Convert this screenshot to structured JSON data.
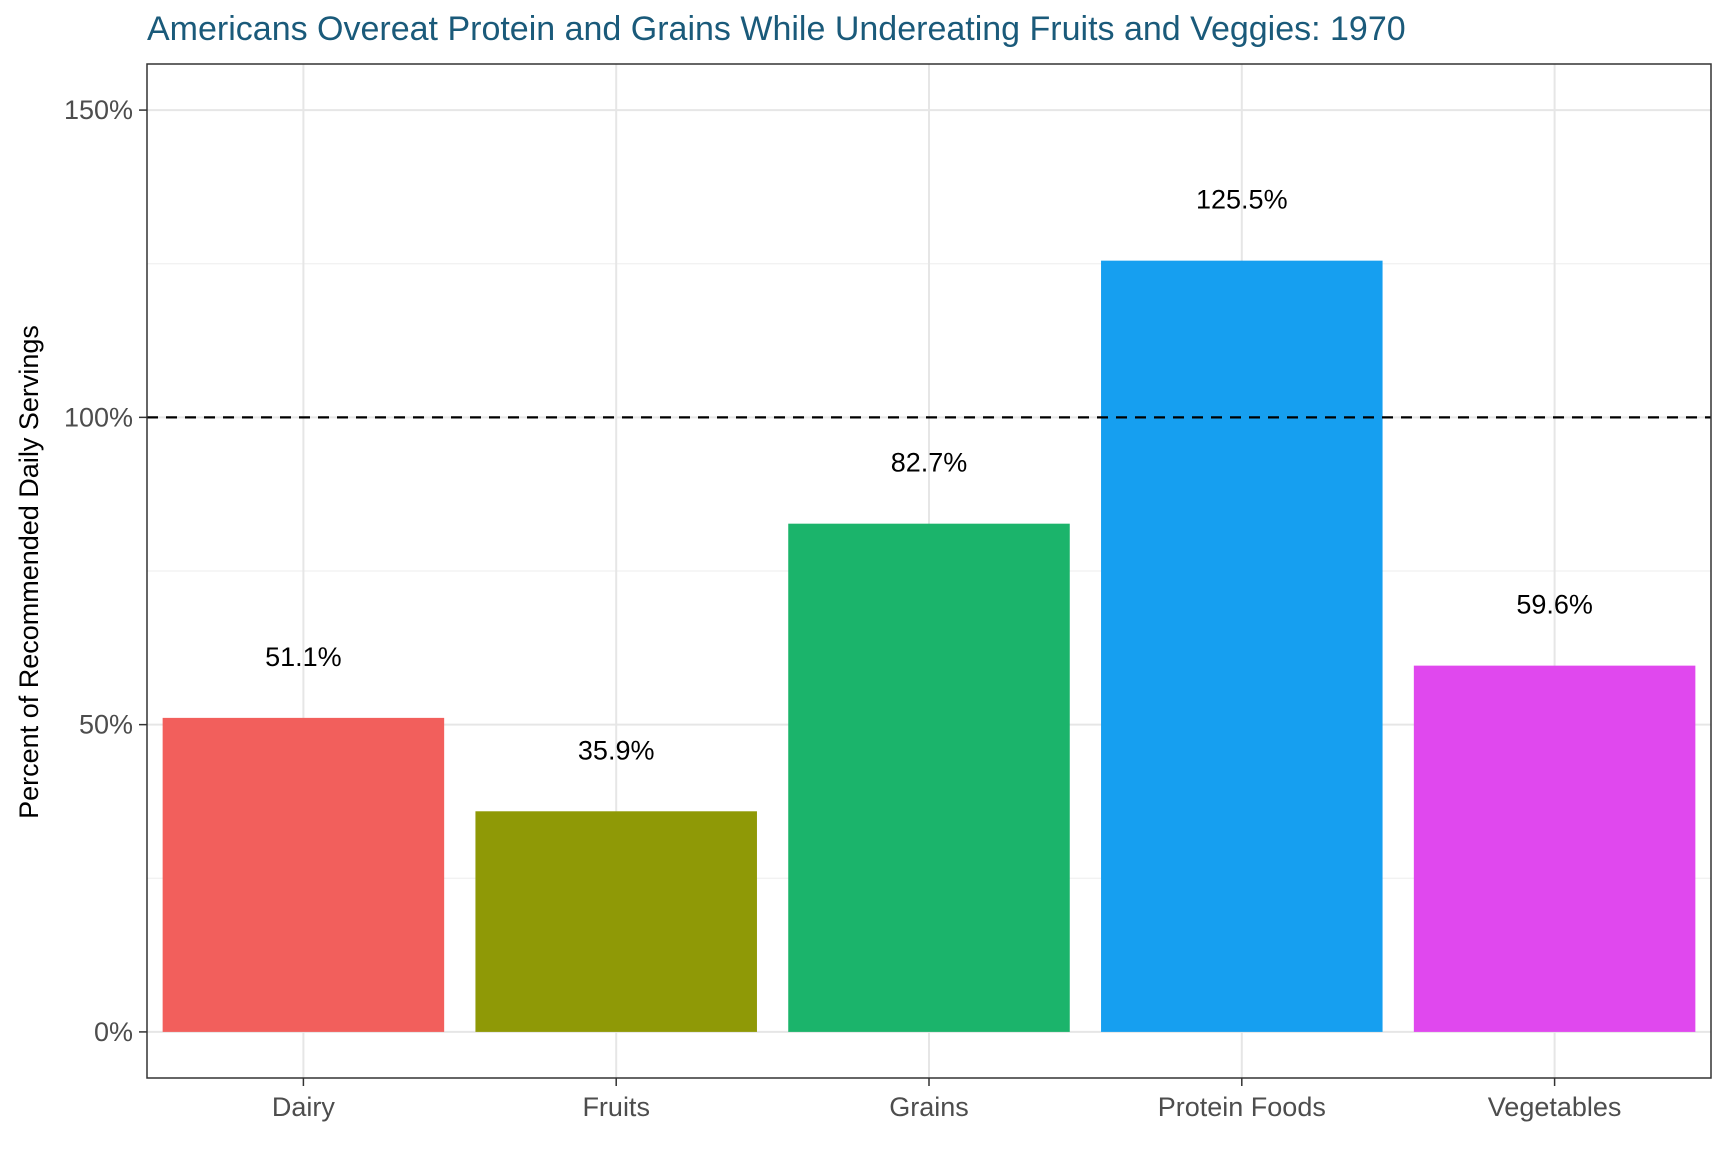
{
  "chart_data": {
    "type": "bar",
    "title": "Americans Overeat Protein and Grains While Undereating Fruits and Veggies: 1970",
    "xlabel": "",
    "ylabel": "Percent of Recommended Daily Servings",
    "categories": [
      "Dairy",
      "Fruits",
      "Grains",
      "Protein Foods",
      "Vegetables"
    ],
    "values": [
      51.1,
      35.9,
      82.7,
      125.5,
      59.6
    ],
    "value_labels": [
      "51.1%",
      "35.9%",
      "82.7%",
      "125.5%",
      "59.6%"
    ],
    "colors": [
      "#f25f5c",
      "#8f9906",
      "#1bb46b",
      "#169ff0",
      "#e048ee"
    ],
    "ylim": [
      -7.5,
      157.5
    ],
    "y_ticks": [
      0,
      50,
      100,
      150
    ],
    "y_tick_labels": [
      "0%",
      "50%",
      "100%",
      "150%"
    ],
    "reference_line": {
      "value": 100,
      "style": "dashed",
      "color": "#000000"
    },
    "grid": true,
    "legend": "none",
    "theme": {
      "panel_border": "#333333",
      "grid_major": "#e6e6e6",
      "grid_minor": "#f0f0f0",
      "title_color": "#1a5a7a"
    }
  }
}
